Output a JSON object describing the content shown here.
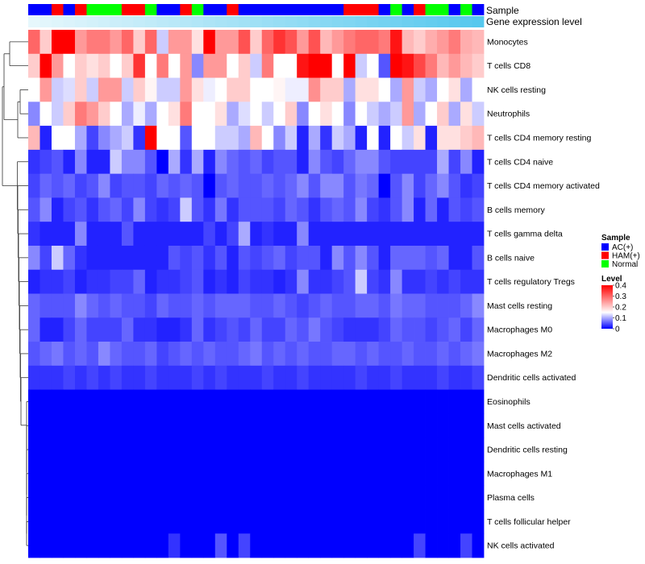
{
  "chart_data": {
    "type": "heatmap",
    "title": "",
    "annotation_labels": {
      "sample": "Sample",
      "expression": "Gene expression level"
    },
    "rows": [
      "Monocytes",
      "T cells CD8",
      "NK cells resting",
      "Neutrophils",
      "T cells CD4 memory resting",
      "T cells CD4 naive",
      "T cells CD4 memory activated",
      "B cells memory",
      "T cells gamma delta",
      "B cells naive",
      "T cells regulatory  Tregs",
      "Mast cells resting",
      "Macrophages M0",
      "Macrophages M2",
      "Dendritic cells activated",
      "Eosinophils",
      "Mast cells activated",
      "Dendritic cells resting",
      "Macrophages M1",
      "Plasma cells",
      "T cells follicular helper",
      "NK cells activated"
    ],
    "sample_groups": [
      "AC",
      "AC",
      "HAM",
      "AC",
      "HAM",
      "Normal",
      "Normal",
      "Normal",
      "HAM",
      "HAM",
      "Normal",
      "AC",
      "AC",
      "HAM",
      "Normal",
      "AC",
      "AC",
      "HAM",
      "AC",
      "AC",
      "AC",
      "AC",
      "AC",
      "AC",
      "AC",
      "AC",
      "AC",
      "HAM",
      "HAM",
      "HAM",
      "AC",
      "Normal",
      "AC",
      "HAM",
      "Normal",
      "Normal",
      "AC",
      "Normal",
      "AC"
    ],
    "values": [
      [
        0.3,
        0.2,
        0.4,
        0.4,
        0.25,
        0.28,
        0.28,
        0.25,
        0.3,
        0.2,
        0.3,
        0.12,
        0.25,
        0.25,
        0.18,
        0.4,
        0.25,
        0.25,
        0.32,
        0.2,
        0.3,
        0.35,
        0.32,
        0.25,
        0.32,
        0.22,
        0.25,
        0.28,
        0.3,
        0.3,
        0.28,
        0.38,
        0.22,
        0.2,
        0.23,
        0.25,
        0.28,
        0.23,
        0.22
      ],
      [
        0.2,
        0.4,
        0.25,
        0.15,
        0.2,
        0.18,
        0.2,
        0.15,
        0.2,
        0.35,
        0.15,
        0.28,
        0.15,
        0.25,
        0.08,
        0.25,
        0.25,
        0.15,
        0.2,
        0.12,
        0.28,
        0.15,
        0.15,
        0.38,
        0.4,
        0.4,
        0.15,
        0.4,
        0.12,
        0.15,
        0.05,
        0.4,
        0.38,
        0.33,
        0.28,
        0.22,
        0.25,
        0.22,
        0.2
      ],
      [
        0.15,
        0.25,
        0.12,
        0.13,
        0.2,
        0.12,
        0.25,
        0.25,
        0.12,
        0.2,
        0.16,
        0.12,
        0.12,
        0.25,
        0.18,
        0.14,
        0.15,
        0.2,
        0.2,
        0.15,
        0.15,
        0.16,
        0.14,
        0.14,
        0.26,
        0.2,
        0.2,
        0.1,
        0.18,
        0.18,
        0.15,
        0.1,
        0.25,
        0.12,
        0.1,
        0.15,
        0.18,
        0.1,
        0.15
      ],
      [
        0.08,
        0.15,
        0.12,
        0.2,
        0.28,
        0.25,
        0.2,
        0.15,
        0.1,
        0.14,
        0.1,
        0.15,
        0.18,
        0.28,
        0.15,
        0.15,
        0.18,
        0.1,
        0.13,
        0.15,
        0.12,
        0.15,
        0.2,
        0.08,
        0.15,
        0.18,
        0.15,
        0.08,
        0.15,
        0.12,
        0.1,
        0.12,
        0.25,
        0.1,
        0.15,
        0.2,
        0.1,
        0.18,
        0.12
      ],
      [
        0.22,
        0.02,
        0.15,
        0.15,
        0.1,
        0.04,
        0.08,
        0.1,
        0.12,
        0.03,
        0.4,
        0.15,
        0.15,
        0.05,
        0.15,
        0.15,
        0.12,
        0.12,
        0.1,
        0.22,
        0.15,
        0.08,
        0.12,
        0.02,
        0.1,
        0.03,
        0.12,
        0.1,
        0.02,
        0.15,
        0.02,
        0.15,
        0.12,
        0.18,
        0.02,
        0.18,
        0.18,
        0.2,
        0.22
      ],
      [
        0.03,
        0.04,
        0.05,
        0.02,
        0.08,
        0.02,
        0.02,
        0.12,
        0.08,
        0.08,
        0.05,
        0.0,
        0.1,
        0.03,
        0.1,
        0.02,
        0.08,
        0.06,
        0.05,
        0.06,
        0.04,
        0.05,
        0.05,
        0.02,
        0.08,
        0.05,
        0.04,
        0.06,
        0.08,
        0.08,
        0.05,
        0.04,
        0.04,
        0.04,
        0.04,
        0.1,
        0.04,
        0.08,
        0.02
      ],
      [
        0.04,
        0.06,
        0.05,
        0.06,
        0.04,
        0.05,
        0.08,
        0.04,
        0.05,
        0.05,
        0.04,
        0.06,
        0.05,
        0.06,
        0.05,
        0.0,
        0.05,
        0.06,
        0.05,
        0.05,
        0.06,
        0.05,
        0.06,
        0.08,
        0.05,
        0.08,
        0.08,
        0.05,
        0.07,
        0.06,
        0.0,
        0.05,
        0.08,
        0.04,
        0.06,
        0.08,
        0.05,
        0.03,
        0.04
      ],
      [
        0.05,
        0.08,
        0.02,
        0.04,
        0.05,
        0.03,
        0.05,
        0.06,
        0.04,
        0.08,
        0.04,
        0.03,
        0.04,
        0.12,
        0.05,
        0.03,
        0.07,
        0.03,
        0.05,
        0.05,
        0.05,
        0.04,
        0.06,
        0.05,
        0.03,
        0.05,
        0.06,
        0.05,
        0.08,
        0.04,
        0.03,
        0.05,
        0.08,
        0.02,
        0.06,
        0.02,
        0.05,
        0.04,
        0.05
      ],
      [
        0.03,
        0.02,
        0.02,
        0.02,
        0.08,
        0.02,
        0.02,
        0.02,
        0.05,
        0.02,
        0.02,
        0.02,
        0.02,
        0.02,
        0.02,
        0.04,
        0.02,
        0.04,
        0.1,
        0.02,
        0.03,
        0.02,
        0.02,
        0.08,
        0.02,
        0.02,
        0.02,
        0.02,
        0.02,
        0.02,
        0.02,
        0.02,
        0.02,
        0.02,
        0.02,
        0.02,
        0.02,
        0.02,
        0.02
      ],
      [
        0.08,
        0.04,
        0.12,
        0.06,
        0.03,
        0.02,
        0.02,
        0.02,
        0.02,
        0.02,
        0.02,
        0.02,
        0.05,
        0.04,
        0.05,
        0.03,
        0.05,
        0.02,
        0.05,
        0.04,
        0.05,
        0.06,
        0.04,
        0.05,
        0.05,
        0.02,
        0.08,
        0.05,
        0.08,
        0.05,
        0.02,
        0.06,
        0.06,
        0.06,
        0.05,
        0.06,
        0.02,
        0.02,
        0.05
      ],
      [
        0.02,
        0.03,
        0.03,
        0.04,
        0.02,
        0.03,
        0.03,
        0.04,
        0.04,
        0.06,
        0.02,
        0.03,
        0.03,
        0.04,
        0.05,
        0.02,
        0.03,
        0.02,
        0.04,
        0.03,
        0.03,
        0.02,
        0.03,
        0.08,
        0.03,
        0.03,
        0.04,
        0.05,
        0.12,
        0.04,
        0.03,
        0.08,
        0.03,
        0.03,
        0.04,
        0.03,
        0.04,
        0.03,
        0.03
      ],
      [
        0.06,
        0.05,
        0.05,
        0.05,
        0.08,
        0.06,
        0.05,
        0.06,
        0.05,
        0.05,
        0.04,
        0.06,
        0.05,
        0.05,
        0.06,
        0.05,
        0.06,
        0.06,
        0.06,
        0.05,
        0.05,
        0.06,
        0.05,
        0.04,
        0.05,
        0.06,
        0.05,
        0.05,
        0.06,
        0.06,
        0.05,
        0.07,
        0.06,
        0.06,
        0.05,
        0.05,
        0.05,
        0.06,
        0.08
      ],
      [
        0.06,
        0.02,
        0.02,
        0.04,
        0.06,
        0.04,
        0.04,
        0.04,
        0.06,
        0.03,
        0.03,
        0.02,
        0.02,
        0.03,
        0.06,
        0.03,
        0.04,
        0.05,
        0.04,
        0.06,
        0.04,
        0.04,
        0.06,
        0.05,
        0.07,
        0.05,
        0.04,
        0.03,
        0.03,
        0.03,
        0.04,
        0.06,
        0.05,
        0.05,
        0.04,
        0.05,
        0.06,
        0.04,
        0.06
      ],
      [
        0.05,
        0.06,
        0.07,
        0.05,
        0.06,
        0.05,
        0.08,
        0.06,
        0.05,
        0.05,
        0.06,
        0.04,
        0.05,
        0.06,
        0.05,
        0.06,
        0.05,
        0.05,
        0.06,
        0.07,
        0.05,
        0.06,
        0.05,
        0.06,
        0.05,
        0.05,
        0.06,
        0.06,
        0.05,
        0.06,
        0.05,
        0.05,
        0.06,
        0.05,
        0.05,
        0.06,
        0.05,
        0.06,
        0.07
      ],
      [
        0.03,
        0.03,
        0.03,
        0.04,
        0.03,
        0.04,
        0.03,
        0.04,
        0.03,
        0.03,
        0.04,
        0.03,
        0.03,
        0.03,
        0.04,
        0.03,
        0.04,
        0.03,
        0.03,
        0.03,
        0.04,
        0.03,
        0.03,
        0.04,
        0.03,
        0.03,
        0.03,
        0.03,
        0.04,
        0.03,
        0.03,
        0.04,
        0.03,
        0.03,
        0.03,
        0.04,
        0.03,
        0.03,
        0.04
      ],
      [
        0,
        0,
        0,
        0,
        0,
        0,
        0,
        0,
        0,
        0,
        0,
        0,
        0,
        0,
        0,
        0,
        0,
        0,
        0,
        0,
        0,
        0,
        0,
        0,
        0,
        0,
        0,
        0,
        0,
        0,
        0,
        0,
        0,
        0,
        0,
        0,
        0,
        0,
        0
      ],
      [
        0,
        0,
        0,
        0,
        0,
        0,
        0,
        0,
        0,
        0,
        0,
        0,
        0,
        0,
        0,
        0,
        0,
        0,
        0,
        0,
        0,
        0,
        0,
        0,
        0,
        0,
        0,
        0,
        0,
        0,
        0,
        0,
        0,
        0,
        0,
        0,
        0,
        0,
        0
      ],
      [
        0,
        0,
        0,
        0,
        0,
        0,
        0,
        0,
        0,
        0,
        0,
        0,
        0,
        0,
        0,
        0,
        0,
        0,
        0,
        0,
        0,
        0,
        0,
        0,
        0,
        0,
        0,
        0,
        0,
        0,
        0,
        0,
        0,
        0,
        0,
        0,
        0,
        0,
        0
      ],
      [
        0,
        0,
        0,
        0,
        0,
        0,
        0,
        0,
        0,
        0,
        0,
        0,
        0,
        0,
        0,
        0,
        0,
        0,
        0,
        0,
        0,
        0,
        0,
        0,
        0,
        0,
        0,
        0,
        0,
        0,
        0,
        0,
        0,
        0,
        0,
        0,
        0,
        0,
        0
      ],
      [
        0,
        0,
        0,
        0,
        0,
        0,
        0,
        0,
        0,
        0,
        0,
        0,
        0,
        0,
        0,
        0,
        0,
        0,
        0,
        0,
        0,
        0,
        0,
        0,
        0,
        0,
        0,
        0,
        0,
        0,
        0,
        0,
        0,
        0,
        0,
        0,
        0,
        0,
        0
      ],
      [
        0,
        0,
        0,
        0,
        0,
        0,
        0,
        0,
        0,
        0,
        0,
        0,
        0,
        0,
        0,
        0,
        0,
        0,
        0,
        0,
        0,
        0,
        0,
        0,
        0,
        0,
        0,
        0,
        0,
        0,
        0,
        0,
        0,
        0,
        0,
        0,
        0,
        0,
        0
      ],
      [
        0,
        0,
        0,
        0,
        0,
        0,
        0,
        0,
        0,
        0,
        0,
        0,
        0.03,
        0,
        0,
        0,
        0.05,
        0,
        0.04,
        0,
        0,
        0,
        0,
        0,
        0,
        0,
        0,
        0,
        0,
        0,
        0,
        0,
        0,
        0.04,
        0,
        0,
        0,
        0.04,
        0
      ]
    ],
    "color_scale": {
      "min": 0,
      "mid": 0.15,
      "max": 0.4,
      "low_color": "#0000ff",
      "mid_color": "#ffffff",
      "high_color": "#ff0000"
    },
    "expression_bar_colors": [
      "#e6f7fc",
      "#56c8ee"
    ],
    "legend": {
      "sample_title": "Sample",
      "sample_items": [
        {
          "label": "AC(+)",
          "key": "AC",
          "color": "#0000ff"
        },
        {
          "label": "HAM(+)",
          "key": "HAM",
          "color": "#ff0000"
        },
        {
          "label": "Normal",
          "key": "Normal",
          "color": "#00ff00"
        }
      ],
      "level_title": "Level",
      "level_ticks": [
        "0.4",
        "0.3",
        "0.2",
        "0.1",
        "0"
      ],
      "position": "right"
    }
  }
}
